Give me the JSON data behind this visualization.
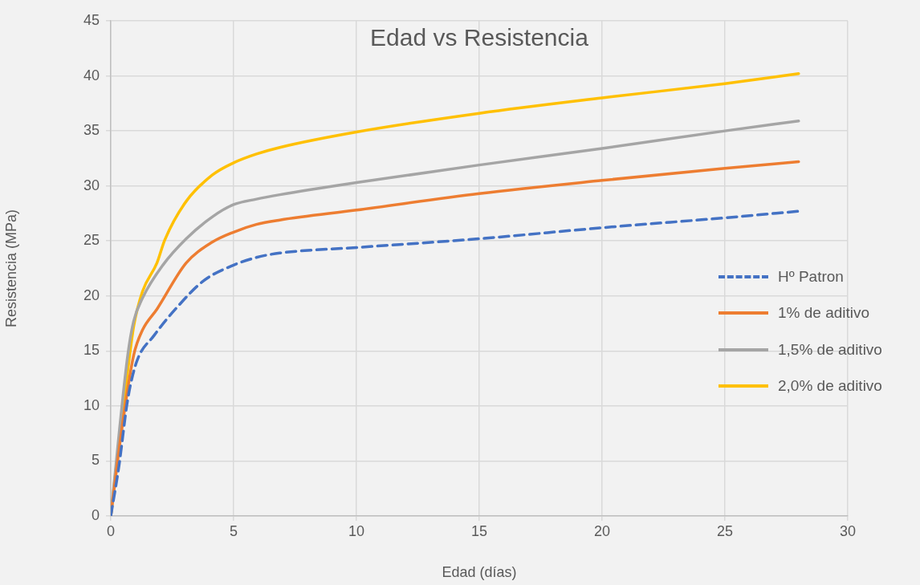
{
  "chart_data": {
    "type": "line",
    "title": "Edad vs Resistencia",
    "xlabel": "Edad (días)",
    "ylabel": "Resistencia (MPa)",
    "xlim": [
      0,
      30
    ],
    "xticks": [
      0,
      5,
      10,
      15,
      20,
      25,
      30
    ],
    "ylim": [
      0,
      45
    ],
    "yticks": [
      0,
      5,
      10,
      15,
      20,
      25,
      30,
      35,
      40,
      45
    ],
    "grid": true,
    "legend": "right",
    "marker": "none",
    "series": [
      {
        "name": "Hº Patron",
        "color": "#4472c4",
        "line_style": "dashed",
        "x": [
          0,
          0.33,
          0.69,
          1.05,
          1.76,
          2.71,
          3.79,
          5,
          5.93,
          6.88,
          10,
          15,
          20,
          25,
          28
        ],
        "values": [
          0,
          4.5,
          10.6,
          14,
          16.4,
          19,
          21.4,
          22.8,
          23.5,
          23.9,
          24.4,
          25.2,
          26.2,
          27.1,
          27.7
        ]
      },
      {
        "name": "1% de aditivo",
        "color": "#ed7d31",
        "line_style": "solid",
        "x": [
          0,
          0.45,
          0.93,
          1.29,
          1.88,
          3.07,
          4.14,
          5,
          5.93,
          6.88,
          10,
          15,
          20,
          25,
          28
        ],
        "values": [
          0,
          7.9,
          14.6,
          16.9,
          18.8,
          23,
          24.9,
          25.8,
          26.5,
          26.9,
          27.8,
          29.3,
          30.5,
          31.6,
          32.2
        ]
      },
      {
        "name": "1,5% de aditivo",
        "color": "#a5a5a5",
        "line_style": "solid",
        "x": [
          0,
          0.69,
          0.93,
          1.29,
          2.12,
          3.07,
          4.14,
          5,
          5.93,
          6.88,
          10,
          15,
          20,
          25,
          28
        ],
        "values": [
          0,
          14.6,
          17.7,
          19.8,
          22.8,
          25.2,
          27.2,
          28.3,
          28.8,
          29.2,
          30.3,
          31.9,
          33.4,
          35,
          35.9
        ]
      },
      {
        "name": "2,0% de aditivo",
        "color": "#ffc000",
        "line_style": "solid",
        "x": [
          0,
          0.33,
          0.69,
          0.93,
          1.29,
          1.88,
          2.2,
          3.07,
          4.14,
          5,
          5.93,
          6.88,
          10,
          15,
          20,
          25,
          28
        ],
        "values": [
          0,
          6.6,
          13.2,
          17.2,
          20.4,
          23,
          25.1,
          28.6,
          31,
          32.1,
          32.9,
          33.5,
          34.9,
          36.6,
          38,
          39.3,
          40.2
        ]
      }
    ]
  }
}
